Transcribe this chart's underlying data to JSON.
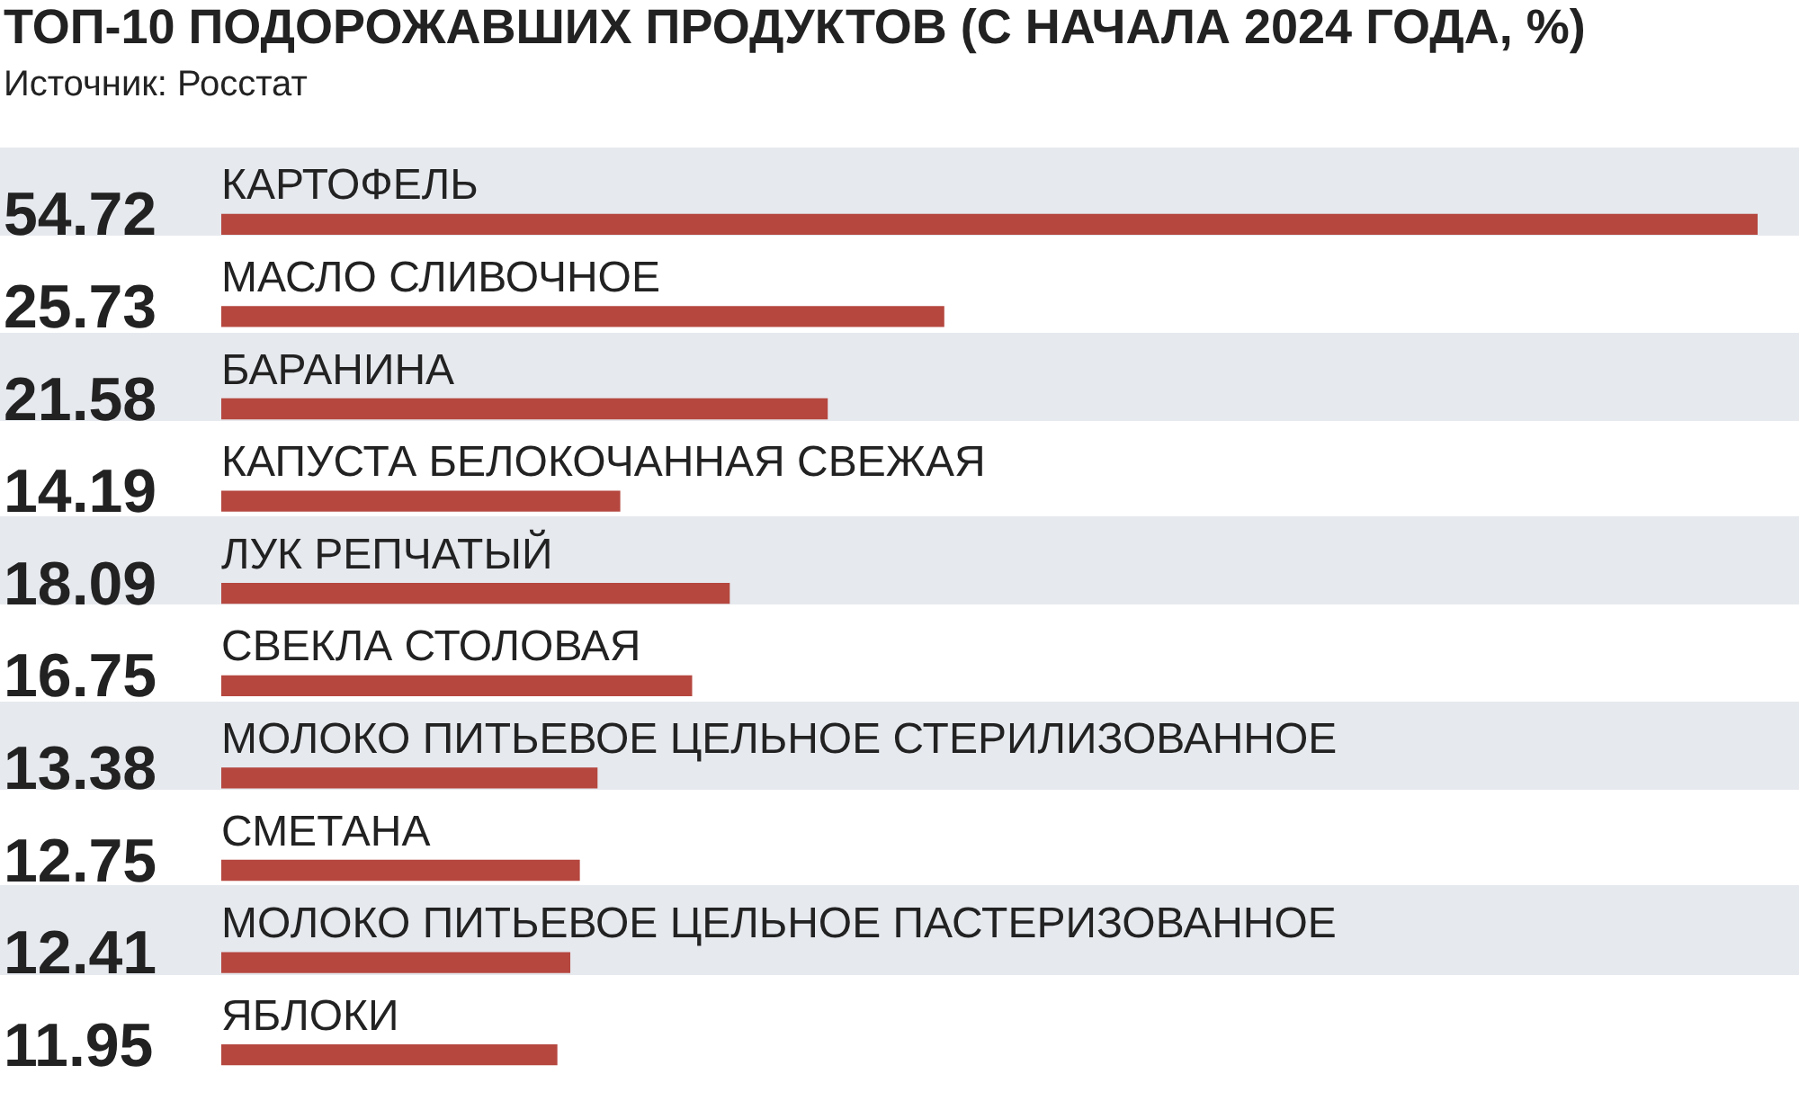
{
  "chart_data": {
    "type": "bar",
    "orientation": "horizontal",
    "title": "ТОП-10 ПОДОРОЖАВШИХ ПРОДУКТОВ (С НАЧАЛА 2024 ГОДА, %)",
    "annotations": [
      "Источник: Росстат"
    ],
    "categories": [
      "КАРТОФЕЛЬ",
      "МАСЛО СЛИВОЧНОЕ",
      "БАРАНИНА",
      "КАПУСТА БЕЛОКОЧАННАЯ СВЕЖАЯ",
      "ЛУК РЕПЧАТЫЙ",
      "СВЕКЛА СТОЛОВАЯ",
      "МОЛОКО ПИТЬЕВОЕ ЦЕЛЬНОЕ СТЕРИЛИЗОВАННОЕ",
      "СМЕТАНА",
      "МОЛОКО ПИТЬЕВОЕ ЦЕЛЬНОЕ ПАСТЕРИЗОВАННОЕ",
      "ЯБЛОКИ"
    ],
    "values": [
      54.72,
      25.73,
      21.58,
      14.19,
      18.09,
      16.75,
      13.38,
      12.75,
      12.41,
      11.95
    ],
    "color": "#b5473f",
    "data_labels": true
  }
}
